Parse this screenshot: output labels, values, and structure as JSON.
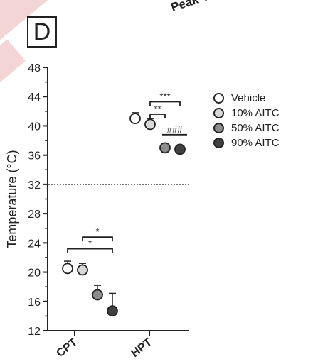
{
  "panel_label": "D",
  "title_fragment": "Peak T",
  "chart_data": {
    "type": "scatter",
    "ylabel": "Temperature (°C)",
    "ylim": [
      12,
      48
    ],
    "yticks": [
      12,
      16,
      20,
      24,
      28,
      32,
      36,
      40,
      44,
      48
    ],
    "categories": [
      "CPT",
      "HPT"
    ],
    "reference_line": 32,
    "series": [
      {
        "name": "Vehicle",
        "color": "#ffffff",
        "values": [
          20.5,
          41.0
        ],
        "errors": [
          1.0,
          0.8
        ]
      },
      {
        "name": "10% AITC",
        "color": "#d9d9d9",
        "values": [
          20.3,
          40.2
        ],
        "errors": [
          0.9,
          0.8
        ]
      },
      {
        "name": "50% AITC",
        "color": "#8c8c8c",
        "values": [
          16.9,
          37.0
        ],
        "errors": [
          1.3,
          0.3
        ]
      },
      {
        "name": "90% AITC",
        "color": "#404040",
        "values": [
          14.7,
          36.8
        ],
        "errors": [
          2.4,
          0.3
        ]
      }
    ],
    "annotations": [
      {
        "text": "*",
        "category": "CPT",
        "from": 1,
        "to": 3,
        "y": 24.8
      },
      {
        "text": "*",
        "category": "CPT",
        "from": 0,
        "to": 3,
        "y": 23.2
      },
      {
        "text": "***",
        "category": "HPT",
        "from": 1,
        "to": 3,
        "y": 43.3
      },
      {
        "text": "**",
        "category": "HPT",
        "from": 1,
        "to": 2,
        "y": 41.6
      },
      {
        "text": "###",
        "category": "HPT",
        "from": 2,
        "to": 3,
        "y": 38.8,
        "style": "line"
      }
    ]
  }
}
